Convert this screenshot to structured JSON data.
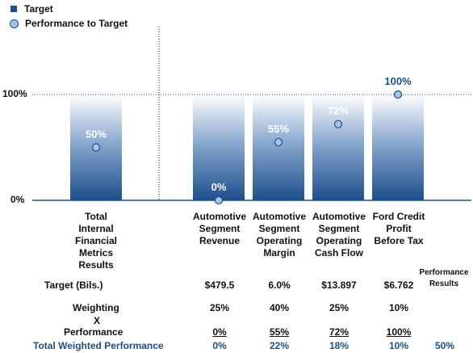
{
  "legend": {
    "target": "Target",
    "performance": "Performance to Target"
  },
  "chart_data": {
    "type": "bar",
    "categories": [
      "Total\nInternal\nFinancial\nMetrics\nResults",
      "Automotive\nSegment\nRevenue",
      "Automotive\nSegment\nOperating\nMargin",
      "Automotive\nSegment\nOperating\nCash Flow",
      "Ford Credit\nProfit\nBefore Tax"
    ],
    "series": [
      {
        "name": "Target",
        "values": [
          100,
          100,
          100,
          100,
          100
        ]
      },
      {
        "name": "Performance to Target",
        "values": [
          50,
          0,
          55,
          72,
          100
        ]
      }
    ],
    "data_labels": [
      "50%",
      "0%",
      "55%",
      "72%",
      "100%"
    ],
    "y_ticks": [
      {
        "value": 0,
        "label": "0%"
      },
      {
        "value": 100,
        "label": "100%"
      }
    ],
    "ylim": [
      0,
      150
    ],
    "colors": {
      "bar_top": "#ffffff",
      "bar_bottom": "#1c4f8c",
      "marker_fill": "#a9c4e3",
      "marker_stroke": "#1c4f8c",
      "label_color": "#ffffff",
      "highlight_label": "#1c4f8c"
    }
  },
  "table": {
    "perf_header": "Performance\nResults",
    "target_label": "Target (Bils.)",
    "targets": [
      "$479.5",
      "6.0%",
      "$13.897",
      "$6.762"
    ],
    "weighting_label": "Weighting",
    "weightings": [
      "25%",
      "40%",
      "25%",
      "10%"
    ],
    "x_label": "X",
    "performance_label": "Performance",
    "performances": [
      "0%",
      "55%",
      "72%",
      "100%"
    ],
    "total_label": "Total Weighted Performance",
    "totals": [
      "0%",
      "22%",
      "18%",
      "10%"
    ],
    "total_result": "50%"
  }
}
